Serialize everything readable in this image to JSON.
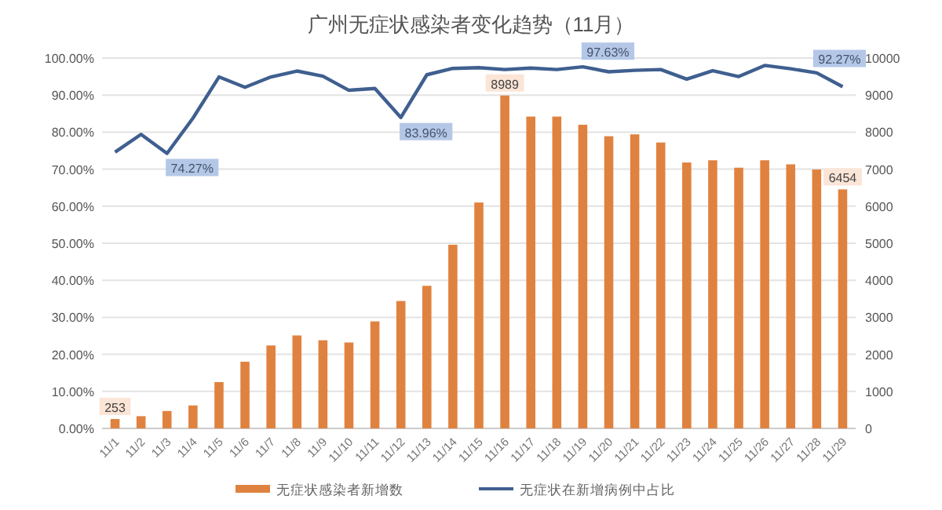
{
  "chart_data": {
    "type": "bar",
    "title": "广州无症状感染者变化趋势（11月）",
    "categories": [
      "11/1",
      "11/2",
      "11/3",
      "11/4",
      "11/5",
      "11/6",
      "11/7",
      "11/8",
      "11/9",
      "11/10",
      "11/11",
      "11/12",
      "11/13",
      "11/14",
      "11/15",
      "11/16",
      "11/17",
      "11/18",
      "11/19",
      "11/20",
      "11/21",
      "11/22",
      "11/23",
      "11/24",
      "11/25",
      "11/26",
      "11/27",
      "11/28",
      "11/29"
    ],
    "series": [
      {
        "name": "无症状感染者新增数",
        "axis": "y2",
        "color": "#e0823f",
        "values": [
          253,
          330,
          470,
          620,
          1250,
          1800,
          2240,
          2510,
          2380,
          2320,
          2890,
          3440,
          3850,
          4960,
          6100,
          8989,
          8420,
          8420,
          8200,
          7890,
          7940,
          7720,
          7180,
          7240,
          7040,
          7240,
          7130,
          6990,
          6454
        ],
        "value_labels": [
          "253",
          null,
          null,
          null,
          null,
          null,
          null,
          null,
          null,
          null,
          null,
          null,
          null,
          null,
          null,
          "8989",
          null,
          null,
          null,
          null,
          null,
          null,
          null,
          null,
          null,
          null,
          null,
          null,
          "6454"
        ]
      },
      {
        "name": "无症状在新增病例中占比",
        "type": "line",
        "color": "#3f5f8f",
        "values": [
          74.6,
          79.4,
          74.27,
          83.8,
          94.9,
          92.1,
          94.9,
          96.5,
          95.1,
          91.3,
          91.8,
          83.96,
          95.5,
          97.2,
          97.4,
          96.9,
          97.3,
          96.9,
          97.63,
          96.3,
          96.7,
          96.9,
          94.3,
          96.6,
          95.0,
          98.0,
          97.1,
          96.0,
          92.27
        ],
        "value_labels": [
          null,
          null,
          "74.27%",
          null,
          null,
          null,
          null,
          null,
          null,
          null,
          null,
          "83.96%",
          null,
          null,
          null,
          null,
          null,
          null,
          "97.63%",
          null,
          null,
          null,
          null,
          null,
          null,
          null,
          null,
          null,
          "92.27%"
        ]
      }
    ],
    "ylim": [
      0,
      100
    ],
    "yticks": [
      {
        "value": 0,
        "label": "0.00%"
      },
      {
        "value": 10,
        "label": "10.00%"
      },
      {
        "value": 20,
        "label": "20.00%"
      },
      {
        "value": 30,
        "label": "30.00%"
      },
      {
        "value": 40,
        "label": "40.00%"
      },
      {
        "value": 50,
        "label": "50.00%"
      },
      {
        "value": 60,
        "label": "60.00%"
      },
      {
        "value": 70,
        "label": "70.00%"
      },
      {
        "value": 80,
        "label": "80.00%"
      },
      {
        "value": 90,
        "label": "90.00%"
      },
      {
        "value": 100,
        "label": "100.00%"
      }
    ],
    "y2lim": [
      0,
      10000
    ],
    "y2ticks": [
      0,
      1000,
      2000,
      3000,
      4000,
      5000,
      6000,
      7000,
      8000,
      9000,
      10000
    ],
    "grid": "y",
    "legend": "bottom",
    "marker": "none",
    "line_style": "solid"
  }
}
